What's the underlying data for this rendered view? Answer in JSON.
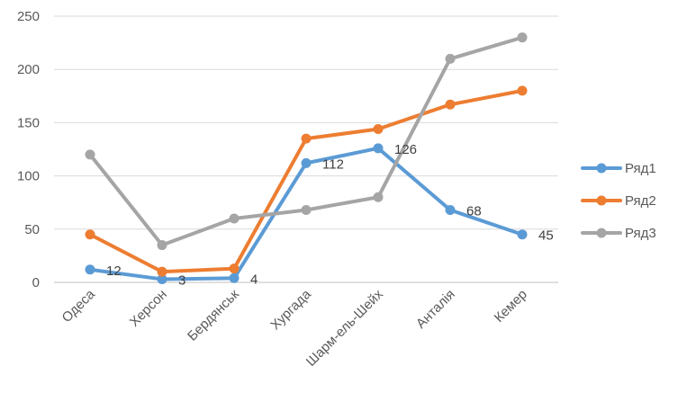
{
  "chart_data": {
    "type": "line",
    "categories": [
      "Одеса",
      "Херсон",
      "Бердянськ",
      "Хургада",
      "Шарм-ель-Шейх",
      "Анталія",
      "Кемер"
    ],
    "series": [
      {
        "name": "Ряд1",
        "values": [
          12,
          3,
          4,
          112,
          126,
          68,
          45
        ],
        "color": "#5B9BD5",
        "labels": [
          "12",
          "3",
          "4",
          "112",
          "126",
          "68",
          "45"
        ]
      },
      {
        "name": "Ряд2",
        "values": [
          45,
          10,
          13,
          135,
          144,
          167,
          180
        ],
        "color": "#ED7D31"
      },
      {
        "name": "Ряд3",
        "values": [
          120,
          35,
          60,
          68,
          80,
          210,
          230
        ],
        "color": "#A5A5A5"
      }
    ],
    "yticks": [
      "0",
      "50",
      "100",
      "150",
      "200",
      "250"
    ],
    "ylim": [
      0,
      250
    ],
    "grid": true,
    "legend_position": "right"
  }
}
